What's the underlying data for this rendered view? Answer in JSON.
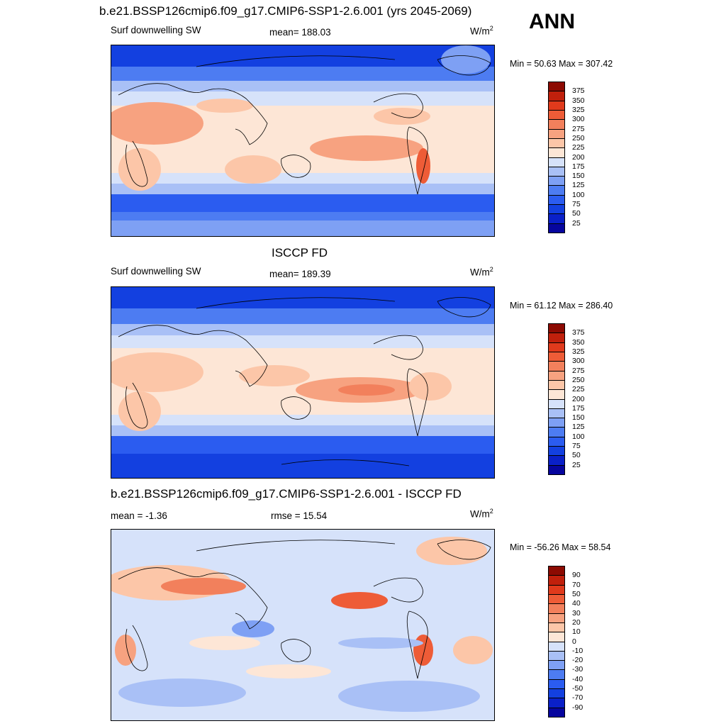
{
  "header": {
    "title": "b.e21.BSSP126cmip6.f09_g17.CMIP6-SSP1-2.6.001 (yrs 2045-2069)",
    "season": "ANN"
  },
  "colors": {
    "abs": [
      "#06059e",
      "#0a20c8",
      "#1340e0",
      "#2b5cf0",
      "#4d7cf2",
      "#7ea0f4",
      "#a9c0f6",
      "#d6e2fa",
      "#fde6d6",
      "#fcc6a8",
      "#f7a280",
      "#f2805c",
      "#ee5c37",
      "#e03a1c",
      "#c0200c",
      "#8c0a02"
    ],
    "diff": [
      "#06059e",
      "#0a20c8",
      "#1340e0",
      "#2b5cf0",
      "#4d7cf2",
      "#7ea0f4",
      "#a9c0f6",
      "#d6e2fa",
      "#fde6d6",
      "#fcc6a8",
      "#f7a280",
      "#f2805c",
      "#ee5c37",
      "#e03a1c",
      "#c0200c",
      "#8c0a02"
    ]
  },
  "panels": [
    {
      "title": "",
      "left_label": "Surf downwelling SW",
      "center_label": "mean= 188.03",
      "units": "W/m",
      "units_sup": "2",
      "minmax": "Min =  50.63 Max = 307.42",
      "colorbar_labels": [
        "375",
        "350",
        "325",
        "300",
        "275",
        "250",
        "225",
        "200",
        "175",
        "150",
        "125",
        "100",
        "75",
        "50",
        "25"
      ]
    },
    {
      "title": "ISCCP FD",
      "left_label": "Surf downwelling SW",
      "center_label": "mean= 189.39",
      "units": "W/m",
      "units_sup": "2",
      "minmax": "Min =  61.12 Max = 286.40",
      "colorbar_labels": [
        "375",
        "350",
        "325",
        "300",
        "275",
        "250",
        "225",
        "200",
        "175",
        "150",
        "125",
        "100",
        "75",
        "50",
        "25"
      ]
    },
    {
      "title": "b.e21.BSSP126cmip6.f09_g17.CMIP6-SSP1-2.6.001 - ISCCP FD",
      "left_label": "mean =  -1.36",
      "center_label": "rmse =  15.54",
      "units": "W/m",
      "units_sup": "2",
      "minmax": "Min = -56.26 Max =  58.54",
      "colorbar_labels": [
        "90",
        "70",
        "50",
        "40",
        "30",
        "20",
        "10",
        "0",
        "-10",
        "-20",
        "-30",
        "-40",
        "-50",
        "-70",
        "-90"
      ]
    }
  ],
  "chart_data": [
    {
      "type": "heatmap",
      "title": "b.e21.BSSP126cmip6.f09_g17.CMIP6-SSP1-2.6.001 (yrs 2045-2069)",
      "variable": "Surf downwelling SW",
      "units": "W/m2",
      "mean": 188.03,
      "min": 50.63,
      "max": 307.42,
      "levels": [
        25,
        50,
        75,
        100,
        125,
        150,
        175,
        200,
        225,
        250,
        275,
        300,
        325,
        350,
        375
      ]
    },
    {
      "type": "heatmap",
      "title": "ISCCP FD",
      "variable": "Surf downwelling SW",
      "units": "W/m2",
      "mean": 189.39,
      "min": 61.12,
      "max": 286.4,
      "levels": [
        25,
        50,
        75,
        100,
        125,
        150,
        175,
        200,
        225,
        250,
        275,
        300,
        325,
        350,
        375
      ]
    },
    {
      "type": "heatmap",
      "title": "b.e21.BSSP126cmip6.f09_g17.CMIP6-SSP1-2.6.001 - ISCCP FD",
      "units": "W/m2",
      "mean": -1.36,
      "rmse": 15.54,
      "min": -56.26,
      "max": 58.54,
      "levels": [
        -90,
        -70,
        -50,
        -40,
        -30,
        -20,
        -10,
        0,
        10,
        20,
        30,
        40,
        50,
        70,
        90
      ]
    }
  ]
}
